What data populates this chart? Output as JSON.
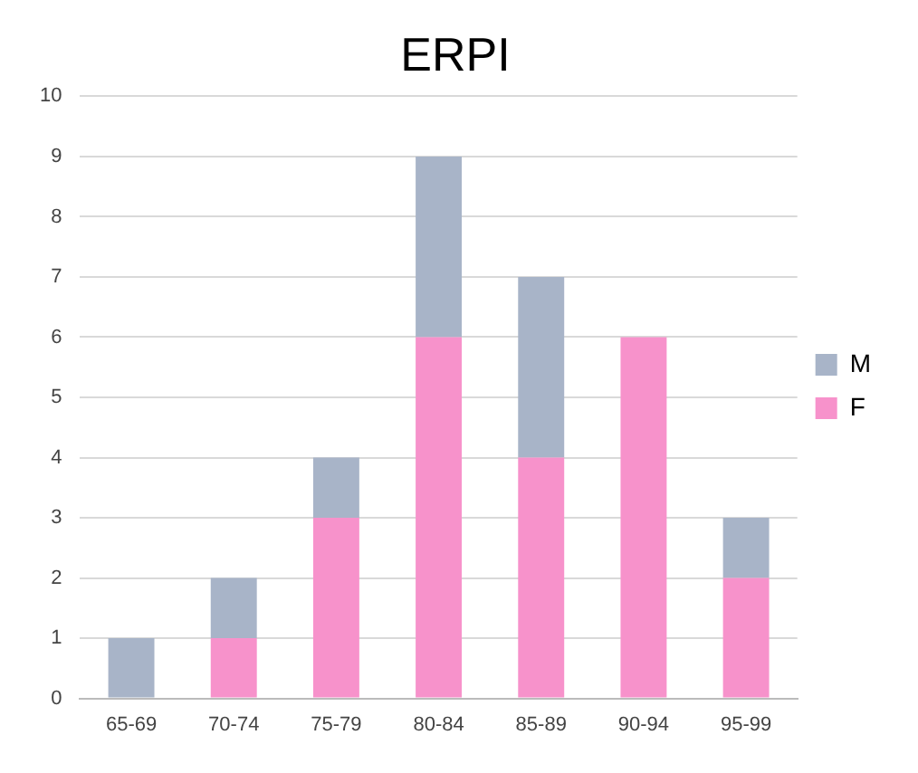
{
  "chart_data": {
    "type": "bar",
    "title": "ERPI",
    "stacked": true,
    "categories": [
      "65-69",
      "70-74",
      "75-79",
      "80-84",
      "85-89",
      "90-94",
      "95-99"
    ],
    "series": [
      {
        "name": "F",
        "color": "#f792cb",
        "values": [
          0,
          1,
          3,
          6,
          4,
          6,
          2
        ]
      },
      {
        "name": "M",
        "color": "#a8b4c8",
        "values": [
          1,
          1,
          1,
          3,
          3,
          0,
          1
        ]
      }
    ],
    "ylim": [
      0,
      10
    ],
    "yticks": [
      0,
      1,
      2,
      3,
      4,
      5,
      6,
      7,
      8,
      9,
      10
    ],
    "grid": "y",
    "legend": "right"
  }
}
